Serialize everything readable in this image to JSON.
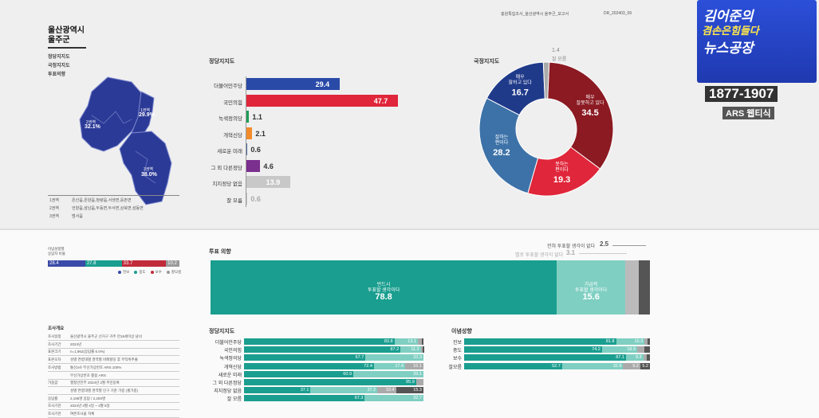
{
  "report_header": {
    "title": "충원특집조사_울산광역시 울주군_보고서",
    "code": "DR_202403_09"
  },
  "region": {
    "title_line1": "울산광역시",
    "title_line2": "울주군",
    "menu": [
      "정당지지도",
      "국정지지도",
      "투표의향"
    ]
  },
  "map": {
    "regions": [
      {
        "label": "2권역",
        "value": "32.1%"
      },
      {
        "label": "1권역",
        "value": "29.9%"
      },
      {
        "label": "3권역",
        "value": "38.0%"
      }
    ],
    "legend_rows": [
      {
        "name": "1권역",
        "desc": "온산읍,온양읍,청량읍,서생면,웅촌면"
      },
      {
        "name": "2권역",
        "desc": "언양읍,삼남읍,두동면,두서면,상북면,삼동면"
      },
      {
        "name": "3권역",
        "desc": "범서읍"
      }
    ]
  },
  "logo": {
    "line1": "김어준의",
    "line2": "겸손은힘들다",
    "line3": "뉴스공장",
    "phone": "1877-1907",
    "sub": "ARS 웹티식"
  },
  "ideology_bar": {
    "title_line1": "이념성향별",
    "title_line2": "응답자 비율",
    "values": [
      "28.4",
      "27.8",
      "33.7",
      "10.2"
    ],
    "legend": [
      "진보",
      "중도",
      "보수",
      "잘모름"
    ],
    "colors": [
      "#3a4aa8",
      "#1a9e8f",
      "#c02a3a",
      "#999999"
    ]
  },
  "info_table": {
    "title": "조사개요",
    "rows": [
      {
        "k": "조사일정",
        "v": "울산광역시 울주군 선거구 거주 만18세이상 남녀"
      },
      {
        "k": "조사기간",
        "v": "2024년"
      },
      {
        "k": "표본크기",
        "v": "n=1,962(응답률 6.0%)"
      },
      {
        "k": "표본오차",
        "v": "성별 연령대별 권역별 비례할당 후 무작위추출"
      },
      {
        "k": "조사방법",
        "v": "통신3사 무선가상번호 ARS 100%"
      },
      {
        "k": "",
        "v": "무선가상번호 활용 ARS"
      },
      {
        "k": "가중값",
        "v": "행정안전부 2024년 2월 주민등록"
      },
      {
        "k": "",
        "v": "성별 연령대별 권역별 인구 기준 가중 (셀가중)"
      },
      {
        "k": "응답률",
        "v": "2,196명 응답 / 2,200명"
      },
      {
        "k": "조사기관",
        "v": "2024년 3월 4일 ~ 3월 5일"
      },
      {
        "k": "조사기관",
        "v": "여론조사꽃 자체"
      }
    ]
  },
  "chart_data": [
    {
      "type": "bar",
      "title": "정당지지도",
      "categories": [
        "더불어민주당",
        "국민의힘",
        "녹색정의당",
        "개혁신당",
        "새로운 미래",
        "그 외 다른정당",
        "지지정당 없음",
        "잘 모름"
      ],
      "values": [
        29.4,
        47.7,
        1.1,
        2.1,
        0.6,
        4.6,
        13.9,
        0.6
      ],
      "colors": [
        "#2a4aa8",
        "#e0263a",
        "#1f9d55",
        "#f28b2b",
        "#4a6d9c",
        "#7b2f8f",
        "#c8c8c8",
        "#c8c8c8"
      ]
    },
    {
      "type": "pie",
      "title": "국정지지도",
      "slices": [
        {
          "label_line1": "매우",
          "label_line2": "잘못하고 있다",
          "value": 34.5,
          "color": "#8b1a22"
        },
        {
          "label_line1": "못하는",
          "label_line2": "편이다",
          "value": 19.3,
          "color": "#e0263a"
        },
        {
          "label_line1": "잘하는",
          "label_line2": "편이다",
          "value": 28.2,
          "color": "#3d72a8"
        },
        {
          "label_line1": "매우",
          "label_line2": "잘하고 있다",
          "value": 16.7,
          "color": "#203a8a"
        },
        {
          "label_line1": "",
          "label_line2": "잘 모름",
          "value": 1.4,
          "color": "#aaaaaa"
        }
      ]
    },
    {
      "type": "bar",
      "title": "투표 의향",
      "segments": [
        {
          "label_line1": "반드시",
          "label_line2": "투표할 생각이다",
          "value": 78.8,
          "color": "#1a9e8f"
        },
        {
          "label_line1": "가급적",
          "label_line2": "투표할 생각이다",
          "value": 15.6,
          "color": "#7fcfc2"
        },
        {
          "label_line1": "별로 투표할 생각이 없다",
          "label_line2": "",
          "value": 3.1,
          "color": "#bbbbbb"
        },
        {
          "label_line1": "전혀 투표할 생각이 없다",
          "label_line2": "",
          "value": 2.5,
          "color": "#555555"
        }
      ]
    },
    {
      "type": "bar",
      "title": "정당지지도",
      "categories": [
        "더불어민주당",
        "국민의힘",
        "녹색정의당",
        "개혁신당",
        "새로운 미래",
        "그 외 다른정당",
        "지지정당 없음",
        "잘 모름"
      ],
      "series": [
        {
          "values": [
            83.8,
            87.2,
            67.7,
            72.4,
            60.9,
            95.9,
            37.1,
            67.3
          ],
          "color": "#1a9e8f"
        },
        {
          "values": [
            13.1,
            11.3,
            32.3,
            17.4,
            39.1,
            0,
            37.2,
            32.7
          ],
          "color": "#7fcfc2"
        },
        {
          "values": [
            2.0,
            0.9,
            0,
            10.1,
            0,
            4.1,
            10.4,
            0
          ],
          "color": "#aaaaaa"
        },
        {
          "values": [
            1.1,
            0.6,
            0,
            0,
            0,
            0,
            15.3,
            0
          ],
          "color": "#555555"
        }
      ]
    },
    {
      "type": "bar",
      "title": "이념성향",
      "categories": [
        "진보",
        "중도",
        "보수",
        "잘모름"
      ],
      "series": [
        {
          "values": [
            81.8,
            74.2,
            87.1,
            52.7
          ],
          "color": "#1a9e8f"
        },
        {
          "values": [
            15.3,
            18.9,
            9.3,
            32.9
          ],
          "color": "#7fcfc2"
        },
        {
          "values": [
            1.6,
            4.0,
            2.0,
            9.2
          ],
          "color": "#aaaaaa"
        },
        {
          "values": [
            1.3,
            2.9,
            1.6,
            5.2
          ],
          "color": "#555555"
        }
      ]
    }
  ]
}
